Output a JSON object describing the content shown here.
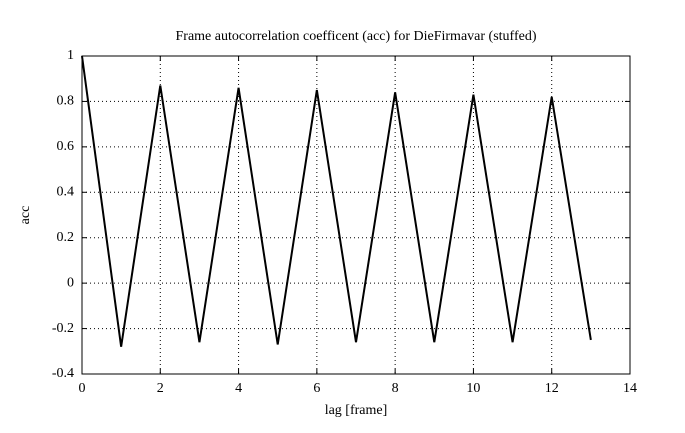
{
  "chart_data": {
    "type": "line",
    "title": "Frame autocorrelation coefficent (acc) for DieFirmavar (stuffed)",
    "xlabel": "lag [frame]",
    "ylabel": "acc",
    "x": [
      0,
      1,
      2,
      3,
      4,
      5,
      6,
      7,
      8,
      9,
      10,
      11,
      12,
      13
    ],
    "series": [
      {
        "name": "acc",
        "color": "#000000",
        "values": [
          1,
          -0.28,
          0.87,
          -0.26,
          0.86,
          -0.27,
          0.85,
          -0.26,
          0.84,
          -0.26,
          0.83,
          -0.26,
          0.82,
          -0.25
        ]
      }
    ],
    "xlim": [
      0,
      14
    ],
    "xticks": [
      0,
      2,
      4,
      6,
      8,
      10,
      12,
      14
    ],
    "ylim": [
      -0.4,
      1
    ],
    "yticks": [
      -0.4,
      -0.2,
      0,
      0.2,
      0.4,
      0.6,
      0.8,
      1
    ],
    "grid": true
  }
}
